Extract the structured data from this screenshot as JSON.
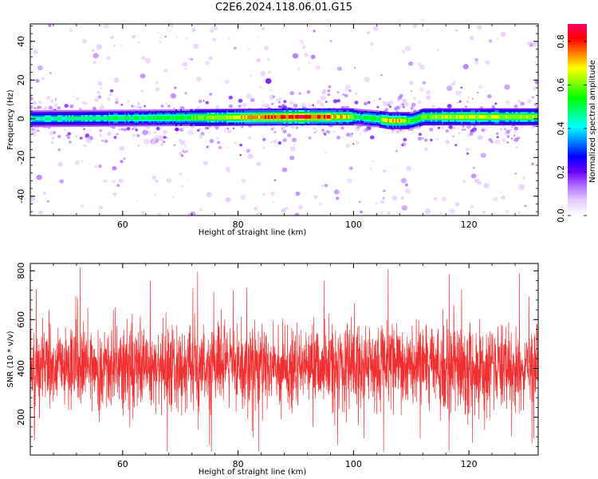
{
  "figure": {
    "title": "C2E6.2024.118.06.01.G15"
  },
  "colors": {
    "snr_line": "#f03030",
    "colormap": [
      "#ffffff",
      "#e6ccff",
      "#b070ff",
      "#6a00ff",
      "#0000ff",
      "#0080ff",
      "#00ffff",
      "#00ff80",
      "#00ff00",
      "#80ff00",
      "#ffff00",
      "#ff8000",
      "#ff0000",
      "#ff0066"
    ]
  },
  "chart_data": [
    {
      "type": "heatmap",
      "title": "",
      "xlabel": "Height of straight line (km)",
      "ylabel": "Frequency (Hz)",
      "xlim": [
        44,
        132
      ],
      "ylim": [
        -50,
        49
      ],
      "xticks": [
        60,
        80,
        100,
        120
      ],
      "yticks": [
        -40,
        -20,
        0,
        20,
        40
      ],
      "colorbar": {
        "label": "Normalized spectral amplitude",
        "range": [
          0.0,
          0.88
        ],
        "ticks": [
          0.0,
          0.2,
          0.4,
          0.6,
          0.8
        ],
        "tick_labels": [
          "0.0",
          "0.2",
          "0.4",
          "0.6",
          "0.8"
        ]
      },
      "band": {
        "center_hz": 0,
        "half_width_hz": 3.5,
        "amplitude_profile": {
          "x": [
            44,
            50,
            60,
            70,
            75,
            80,
            85,
            90,
            95,
            99,
            101,
            104,
            106,
            108,
            110,
            112,
            116,
            120,
            125,
            132
          ],
          "amplitude": [
            0.45,
            0.48,
            0.5,
            0.55,
            0.62,
            0.68,
            0.78,
            0.84,
            0.8,
            0.7,
            0.5,
            0.55,
            0.72,
            0.7,
            0.55,
            0.62,
            0.66,
            0.68,
            0.66,
            0.62
          ]
        },
        "offset_profile": {
          "x": [
            44,
            90,
            100,
            104,
            106,
            110,
            112,
            132
          ],
          "offset_hz": [
            0,
            1,
            1,
            0,
            -1,
            -1,
            1,
            1
          ]
        }
      }
    },
    {
      "type": "line",
      "title": "",
      "xlabel": "Height of straight line (km)",
      "ylabel": "SNR (10 * v/v)",
      "xlim": [
        44,
        132
      ],
      "ylim": [
        45,
        830
      ],
      "xticks": [
        60,
        80,
        100,
        120
      ],
      "yticks": [
        200,
        400,
        600,
        800
      ],
      "series": [
        {
          "color": "#f03030",
          "mean": 405,
          "spread": 155,
          "min_peak": 60,
          "max_peak": 820,
          "x_range": [
            44,
            132
          ]
        }
      ]
    }
  ]
}
